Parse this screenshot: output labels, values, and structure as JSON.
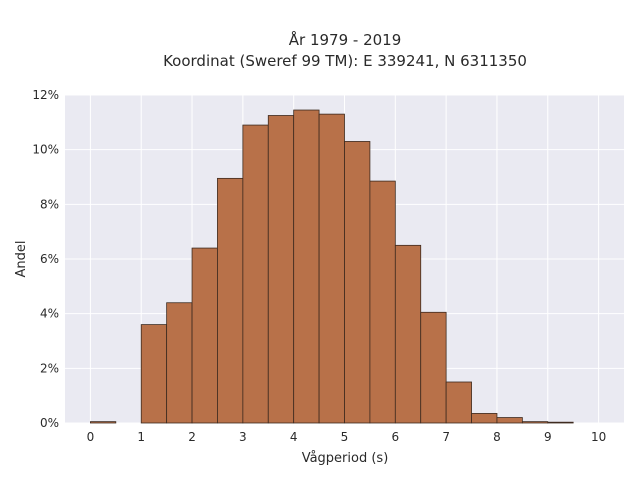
{
  "chart_data": {
    "type": "bar",
    "title": "År 1979 - 2019",
    "subtitle": "Koordinat (Sweref 99 TM): E 339241, N 6311350",
    "xlabel": "Vågperiod (s)",
    "ylabel": "Andel",
    "xlim": [
      -0.5,
      10.5
    ],
    "ylim": [
      0,
      12
    ],
    "x_ticks": [
      0,
      1,
      2,
      3,
      4,
      5,
      6,
      7,
      8,
      9,
      10
    ],
    "y_ticks": [
      0,
      2,
      4,
      6,
      8,
      10,
      12
    ],
    "y_tick_labels": [
      "0%",
      "2%",
      "4%",
      "6%",
      "8%",
      "10%",
      "12%"
    ],
    "grid": true,
    "bin_width": 0.5,
    "bins": [
      {
        "start": 0.0,
        "value": 0.05
      },
      {
        "start": 0.5,
        "value": 0.0
      },
      {
        "start": 1.0,
        "value": 3.6
      },
      {
        "start": 1.5,
        "value": 4.4
      },
      {
        "start": 2.0,
        "value": 6.4
      },
      {
        "start": 2.5,
        "value": 8.95
      },
      {
        "start": 3.0,
        "value": 10.9
      },
      {
        "start": 3.5,
        "value": 11.25
      },
      {
        "start": 4.0,
        "value": 11.45
      },
      {
        "start": 4.5,
        "value": 11.3
      },
      {
        "start": 5.0,
        "value": 10.3
      },
      {
        "start": 5.5,
        "value": 8.85
      },
      {
        "start": 6.0,
        "value": 6.5
      },
      {
        "start": 6.5,
        "value": 4.05
      },
      {
        "start": 7.0,
        "value": 1.5
      },
      {
        "start": 7.5,
        "value": 0.35
      },
      {
        "start": 8.0,
        "value": 0.2
      },
      {
        "start": 8.5,
        "value": 0.05
      },
      {
        "start": 9.0,
        "value": 0.03
      }
    ],
    "colors": {
      "bar": "#b87149",
      "background": "#eaeaf2",
      "grid": "#ffffff"
    }
  }
}
